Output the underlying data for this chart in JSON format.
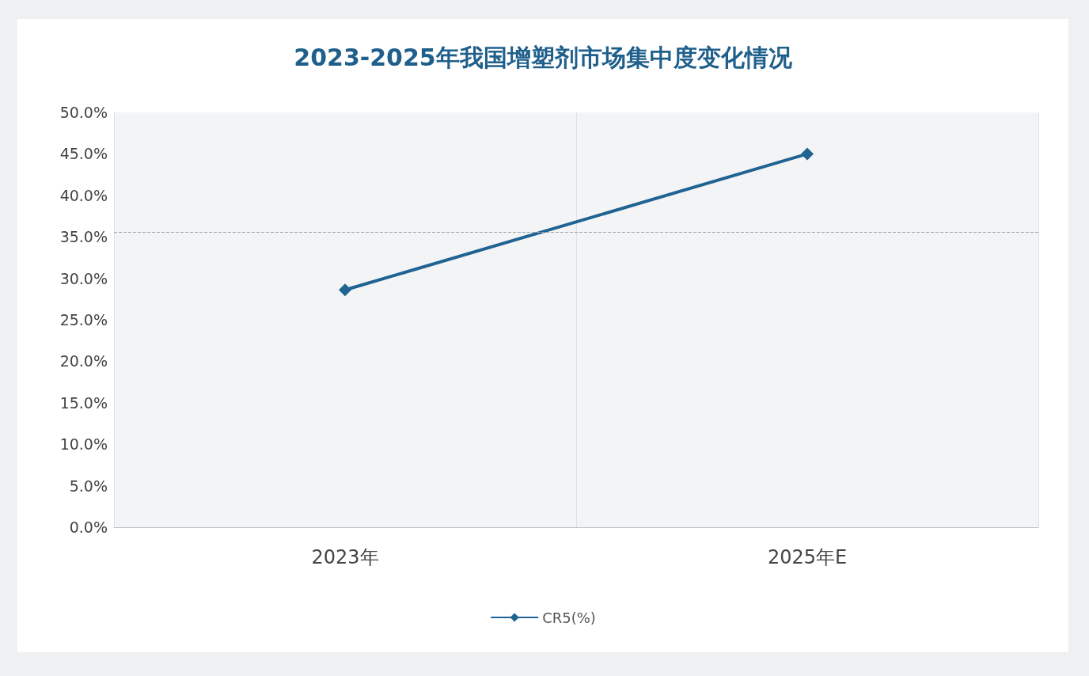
{
  "chart_data": {
    "type": "line",
    "title": "2023-2025年我国增塑剂市场集中度变化情况",
    "categories": [
      "2023年",
      "2025年E"
    ],
    "series": [
      {
        "name": "CR5(%)",
        "color": "#1f6392",
        "values": [
          28.6,
          45.0
        ]
      }
    ],
    "ylim": [
      0,
      50
    ],
    "yticks": [
      {
        "value": 0,
        "label": "0.0%"
      },
      {
        "value": 5,
        "label": "5.0%"
      },
      {
        "value": 10,
        "label": "10.0%"
      },
      {
        "value": 15,
        "label": "15.0%"
      },
      {
        "value": 20,
        "label": "20.0%"
      },
      {
        "value": 25,
        "label": "25.0%"
      },
      {
        "value": 30,
        "label": "30.0%"
      },
      {
        "value": 35,
        "label": "35.0%"
      },
      {
        "value": 40,
        "label": "40.0%"
      },
      {
        "value": 45,
        "label": "45.0%"
      },
      {
        "value": 50,
        "label": "50.0%"
      }
    ],
    "ref_lines": [
      {
        "axis": "y",
        "value": 35.6,
        "color": "#a0a8b0",
        "line_style": "dashed"
      }
    ],
    "grid": "x",
    "legend": "bottom",
    "marker": "diamond",
    "line_style": "solid"
  }
}
